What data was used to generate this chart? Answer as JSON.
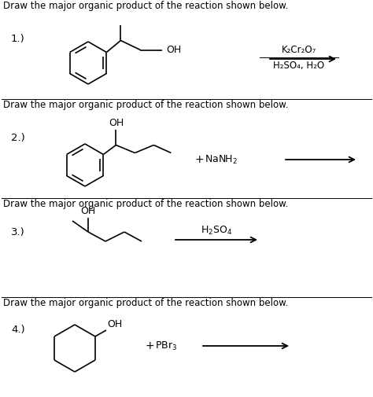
{
  "title_text": "Draw the major organic product of the reaction shown below.",
  "background_color": "#ffffff",
  "text_color": "#000000",
  "font_size_title": 8.5,
  "font_size_label": 9.5,
  "font_size_chem": 8.5,
  "sections": [
    {
      "label": "1.)",
      "reagent_line1": "K₂Cr₂O₇",
      "reagent_line2": "H₂SO₄, H₂O"
    },
    {
      "label": "2.)",
      "plus": "+",
      "plus_reagent": "NaNH₂"
    },
    {
      "label": "3.)",
      "reagent_line1": "H₂SO₄"
    },
    {
      "label": "4.)",
      "plus": "+",
      "plus_reagent": "PBr₃"
    }
  ]
}
